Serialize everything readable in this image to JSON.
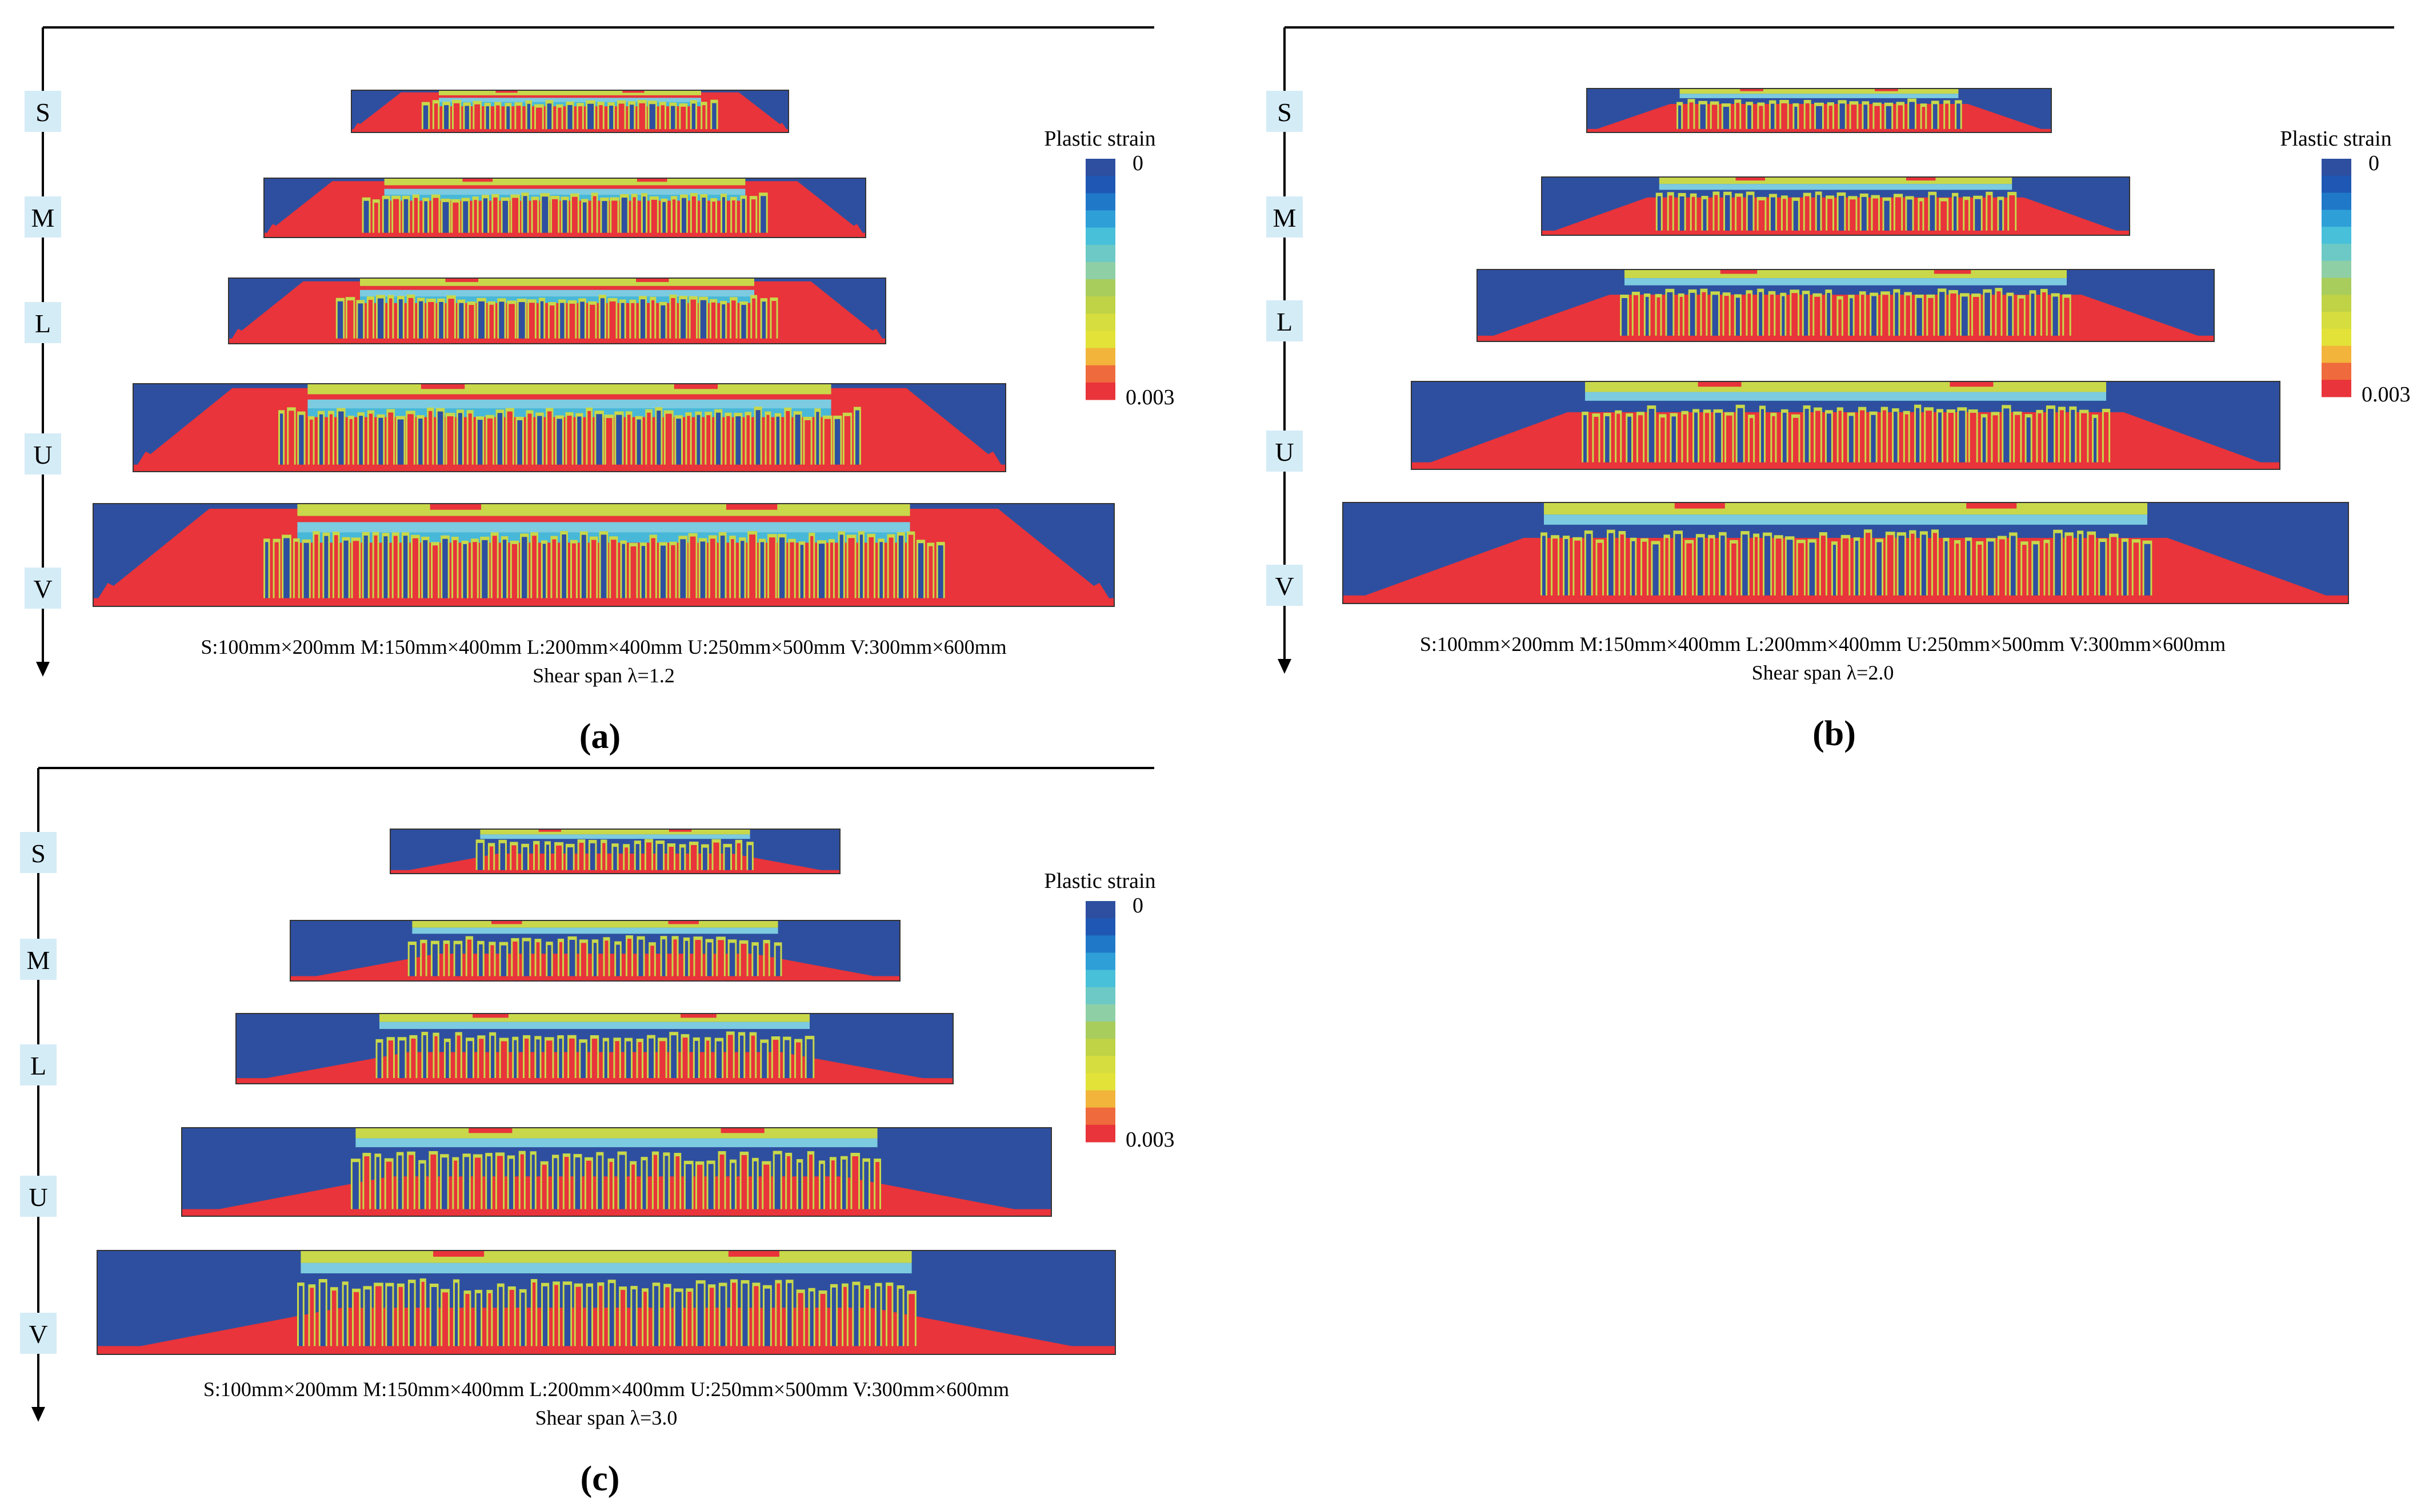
{
  "figure": {
    "colorbar_title": "Plastic strain",
    "colorbar_min": "0",
    "colorbar_max": "0.003",
    "colorbar_colors": [
      "#2e4fa0",
      "#1f58b4",
      "#1f78c8",
      "#2f9fd8",
      "#48c0da",
      "#6cc9c6",
      "#8fcfa6",
      "#a8cd5c",
      "#c0d246",
      "#d6dd3e",
      "#e2e238",
      "#f2b43a",
      "#ef6a3c",
      "#e8343a"
    ],
    "size_labels": [
      "S",
      "M",
      "L",
      "U",
      "V"
    ],
    "size_caption": "S:100mm×200mm  M:150mm×400mm  L:200mm×400mm U:250mm×500mm V:300mm×600mm",
    "panels": [
      {
        "id": "a",
        "label": "(a)",
        "shear_span_text": "Shear span λ=1.2",
        "lambda": 1.2
      },
      {
        "id": "b",
        "label": "(b)",
        "shear_span_text": "Shear span λ=2.0",
        "lambda": 2.0
      },
      {
        "id": "c",
        "label": "(c)",
        "shear_span_text": "Shear span λ=3.0",
        "lambda": 3.0
      }
    ]
  }
}
